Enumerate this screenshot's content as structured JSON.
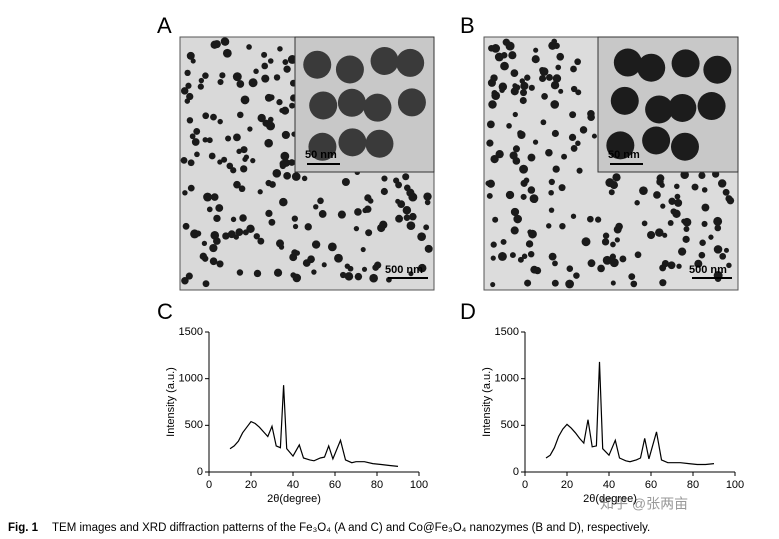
{
  "panels": [
    {
      "label": "A",
      "inset_scale": "50 nm",
      "scale": "500 nm"
    },
    {
      "label": "B",
      "inset_scale": "50 nm",
      "scale": "500 nm"
    }
  ],
  "chart_data": [
    {
      "type": "line",
      "panel_label": "C",
      "xlabel": "2θ(degree)",
      "ylabel": "Intensity (a.u.)",
      "color": "#000000",
      "x": [
        10,
        12,
        14,
        16,
        18,
        20,
        22,
        24,
        26,
        28,
        30,
        32,
        34,
        35.5,
        37,
        40,
        43,
        45,
        48,
        50,
        53,
        55,
        57,
        59,
        62.6,
        65,
        68,
        70,
        74,
        78,
        82,
        86,
        90
      ],
      "values": [
        250,
        280,
        330,
        420,
        480,
        540,
        520,
        480,
        430,
        380,
        490,
        280,
        260,
        930,
        250,
        170,
        290,
        150,
        130,
        120,
        150,
        160,
        280,
        140,
        340,
        130,
        100,
        110,
        110,
        90,
        80,
        70,
        60
      ],
      "xlim": [
        0,
        100
      ],
      "xticks": [
        0,
        20,
        40,
        60,
        80,
        100
      ],
      "ylim": [
        0,
        1500
      ],
      "yticks": [
        0,
        500,
        1000,
        1500
      ]
    },
    {
      "type": "line",
      "panel_label": "D",
      "xlabel": "2θ(degree)",
      "ylabel": "Intensity (a.u.)",
      "color": "#000000",
      "x": [
        10,
        12,
        14,
        16,
        18,
        20,
        22,
        24,
        26,
        28,
        30,
        32,
        34,
        35.5,
        37,
        40,
        43,
        45,
        48,
        50,
        53,
        55,
        57,
        59,
        62.6,
        65,
        68,
        70,
        74,
        78,
        82,
        86,
        90
      ],
      "values": [
        150,
        180,
        260,
        380,
        460,
        510,
        470,
        420,
        360,
        310,
        560,
        270,
        280,
        1180,
        250,
        180,
        340,
        150,
        120,
        110,
        130,
        150,
        360,
        140,
        430,
        130,
        100,
        100,
        100,
        90,
        80,
        80,
        90
      ],
      "xlim": [
        0,
        100
      ],
      "xticks": [
        0,
        20,
        40,
        60,
        80,
        100
      ],
      "ylim": [
        0,
        1500
      ],
      "yticks": [
        0,
        500,
        1000,
        1500
      ]
    }
  ],
  "watermark": "知乎 @张两亩",
  "caption": {
    "label": "Fig. 1",
    "text": "TEM images and XRD diffraction patterns of the Fe₃O₄ (A and C) and Co@Fe₃O₄ nanozymes (B and D), respectively."
  }
}
